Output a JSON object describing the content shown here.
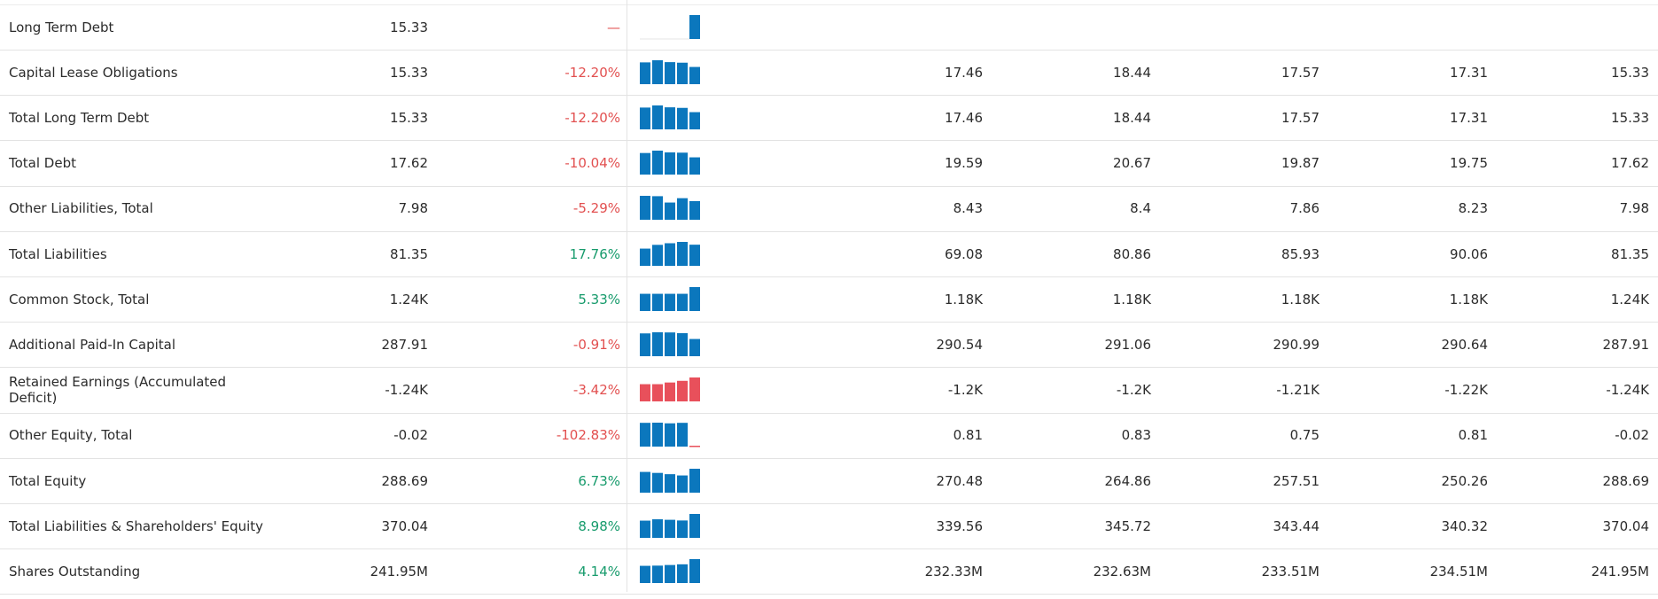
{
  "colors": {
    "bar_positive": "#0b77bd",
    "bar_negative": "#e8505b",
    "text_negative": "#e25050",
    "text_positive": "#179b6c"
  },
  "rows": [
    {
      "label": "Long Term Debt",
      "latest": "15.33",
      "change": "—",
      "change_sign": "neg",
      "history": [
        null,
        null,
        null,
        null,
        15.33
      ],
      "values": [
        "",
        "",
        "",
        "",
        ""
      ]
    },
    {
      "label": "Capital Lease Obligations",
      "latest": "15.33",
      "change": "-12.20%",
      "change_sign": "neg",
      "history": [
        17.46,
        18.44,
        17.57,
        17.31,
        15.33
      ],
      "values": [
        "17.46",
        "18.44",
        "17.57",
        "17.31",
        "15.33"
      ]
    },
    {
      "label": "Total Long Term Debt",
      "latest": "15.33",
      "change": "-12.20%",
      "change_sign": "neg",
      "history": [
        17.46,
        18.44,
        17.57,
        17.31,
        15.33
      ],
      "values": [
        "17.46",
        "18.44",
        "17.57",
        "17.31",
        "15.33"
      ]
    },
    {
      "label": "Total Debt",
      "latest": "17.62",
      "change": "-10.04%",
      "change_sign": "neg",
      "history": [
        19.59,
        20.67,
        19.87,
        19.75,
        17.62
      ],
      "values": [
        "19.59",
        "20.67",
        "19.87",
        "19.75",
        "17.62"
      ]
    },
    {
      "label": "Other Liabilities, Total",
      "latest": "7.98",
      "change": "-5.29%",
      "change_sign": "neg",
      "history": [
        8.43,
        8.4,
        7.86,
        8.23,
        7.98
      ],
      "values": [
        "8.43",
        "8.4",
        "7.86",
        "8.23",
        "7.98"
      ]
    },
    {
      "label": "Total Liabilities",
      "latest": "81.35",
      "change": "17.76%",
      "change_sign": "pos",
      "history": [
        69.08,
        80.86,
        85.93,
        90.06,
        81.35
      ],
      "values": [
        "69.08",
        "80.86",
        "85.93",
        "90.06",
        "81.35"
      ]
    },
    {
      "label": "Common Stock, Total",
      "latest": "1.24K",
      "change": "5.33%",
      "change_sign": "pos",
      "history": [
        1180,
        1180,
        1180,
        1180,
        1240
      ],
      "values": [
        "1.18K",
        "1.18K",
        "1.18K",
        "1.18K",
        "1.24K"
      ]
    },
    {
      "label": "Additional Paid-In Capital",
      "latest": "287.91",
      "change": "-0.91%",
      "change_sign": "neg",
      "history": [
        290.54,
        291.06,
        290.99,
        290.64,
        287.91
      ],
      "values": [
        "290.54",
        "291.06",
        "290.99",
        "290.64",
        "287.91"
      ]
    },
    {
      "label": "Retained Earnings (Accumulated Deficit)",
      "latest": "-1.24K",
      "change": "-3.42%",
      "change_sign": "neg",
      "history": [
        -1200,
        -1200,
        -1210,
        -1220,
        -1240
      ],
      "values": [
        "-1.2K",
        "-1.2K",
        "-1.21K",
        "-1.22K",
        "-1.24K"
      ]
    },
    {
      "label": "Other Equity, Total",
      "latest": "-0.02",
      "change": "-102.83%",
      "change_sign": "neg",
      "history": [
        0.81,
        0.83,
        0.75,
        0.81,
        -0.02
      ],
      "values": [
        "0.81",
        "0.83",
        "0.75",
        "0.81",
        "-0.02"
      ]
    },
    {
      "label": "Total Equity",
      "latest": "288.69",
      "change": "6.73%",
      "change_sign": "pos",
      "history": [
        270.48,
        264.86,
        257.51,
        250.26,
        288.69
      ],
      "values": [
        "270.48",
        "264.86",
        "257.51",
        "250.26",
        "288.69"
      ]
    },
    {
      "label": "Total Liabilities & Shareholders' Equity",
      "latest": "370.04",
      "change": "8.98%",
      "change_sign": "pos",
      "history": [
        339.56,
        345.72,
        343.44,
        340.32,
        370.04
      ],
      "values": [
        "339.56",
        "345.72",
        "343.44",
        "340.32",
        "370.04"
      ]
    },
    {
      "label": "Shares Outstanding",
      "latest": "241.95M",
      "change": "4.14%",
      "change_sign": "pos",
      "history": [
        232.33,
        232.63,
        233.51,
        234.51,
        241.95
      ],
      "values": [
        "232.33M",
        "232.63M",
        "233.51M",
        "234.51M",
        "241.95M"
      ]
    }
  ]
}
